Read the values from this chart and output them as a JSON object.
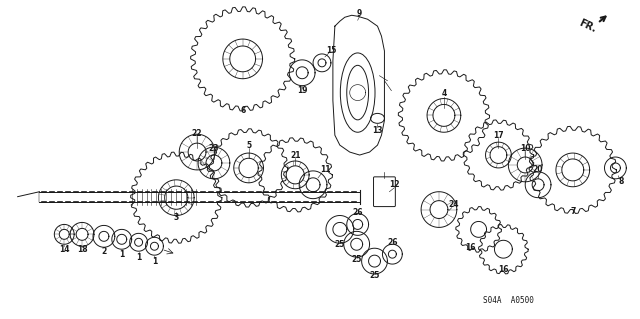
{
  "bg_color": "#ffffff",
  "fig_width": 6.4,
  "fig_height": 3.19,
  "part_code": "S04A  A0500",
  "line_color": "#1a1a1a",
  "text_color": "#1a1a1a",
  "lw_main": 0.7,
  "lw_thin": 0.45,
  "lw_shaft": 0.6
}
